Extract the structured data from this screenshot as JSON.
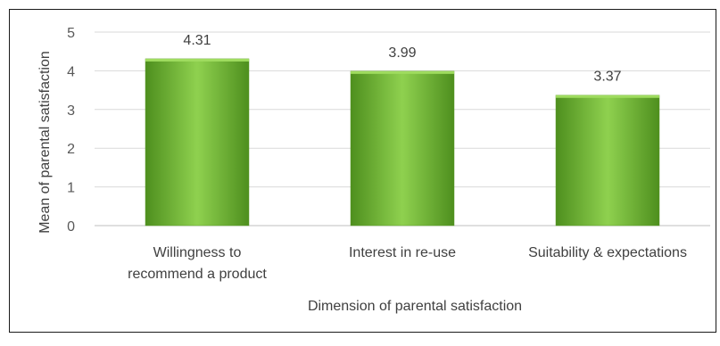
{
  "chart_data": {
    "type": "bar",
    "title": "",
    "xlabel": "Dimension of parental satisfaction",
    "ylabel": "Mean of parental satisfaction",
    "categories": [
      [
        "Willingness to",
        "recommend a product"
      ],
      [
        "Interest in re-use"
      ],
      [
        "Suitability & expectations"
      ]
    ],
    "values": [
      4.31,
      3.99,
      3.37
    ],
    "data_labels": [
      "4.31",
      "3.99",
      "3.37"
    ],
    "y_ticks": [
      0,
      1,
      2,
      3,
      4,
      5
    ],
    "ylim": [
      0,
      5
    ],
    "grid": true,
    "legend": "none",
    "colors": {
      "bar_light": "#8fd14f",
      "bar_dark": "#4e8f1e",
      "bar_top": "#9fdc5f",
      "gridline": "#d9d9d9",
      "text": "#404040"
    }
  }
}
